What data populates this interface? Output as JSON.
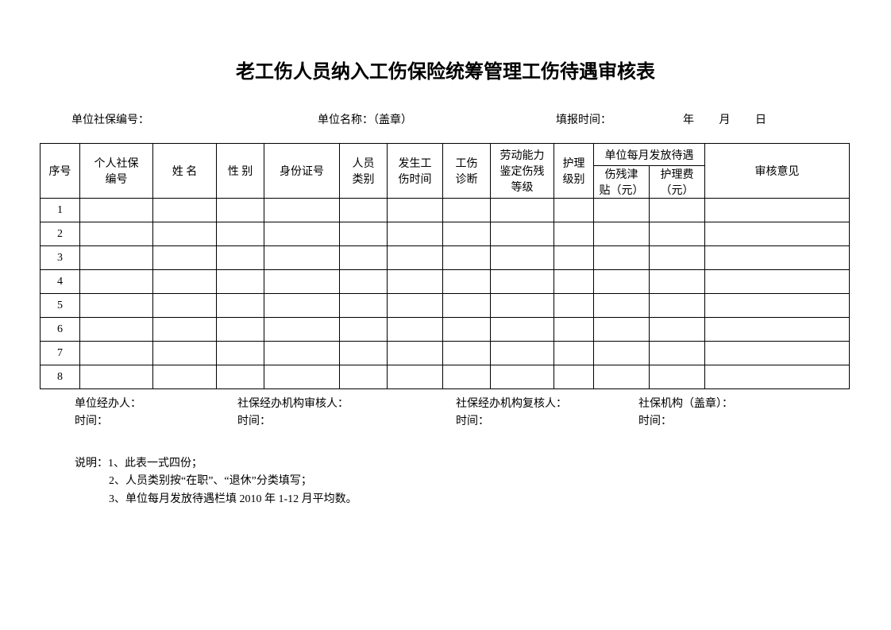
{
  "title": "老工伤人员纳入工伤保险统筹管理工伤待遇审核表",
  "meta": {
    "unit_ssn_label": "单位社保编号：",
    "unit_name_label": "单位名称：（盖章）",
    "fill_time_label": "填报时间：",
    "year": "年",
    "month": "月",
    "day": "日"
  },
  "table": {
    "headers": {
      "seq": "序号",
      "personal_ssn": "个人社保\n编号",
      "name": "姓 名",
      "sex": "性 别",
      "id_no": "身份证号",
      "category": "人员\n类别",
      "injury_time": "发生工\n伤时间",
      "diagnosis": "工伤\n诊断",
      "disability_level": "劳动能力\n鉴定伤残\n等级",
      "care_level": "护理\n级别",
      "monthly_pay_group": "单位每月发放待遇",
      "disability_allowance": "伤残津\n贴（元）",
      "care_fee": "护理费\n（元）",
      "review": "审核意见"
    },
    "row_numbers": [
      "1",
      "2",
      "3",
      "4",
      "5",
      "6",
      "7",
      "8"
    ]
  },
  "footer": {
    "unit_handler": "单位经办人：",
    "ss_reviewer": "社保经办机构审核人：",
    "ss_rechecker": "社保经办机构复核人：",
    "ss_org": "社保机构（盖章）：",
    "time_label": "时间："
  },
  "notes": {
    "prefix": "说明：",
    "line1": "1、此表一式四份；",
    "line2": "2、人员类别按“在职”、“退休”分类填写；",
    "line3": "3、单位每月发放待遇栏填 2010 年 1-12 月平均数。"
  },
  "style": {
    "background_color": "#ffffff",
    "text_color": "#000000",
    "border_color": "#000000",
    "title_fontsize": 24,
    "body_fontsize": 14,
    "font_family": "SimSun"
  }
}
